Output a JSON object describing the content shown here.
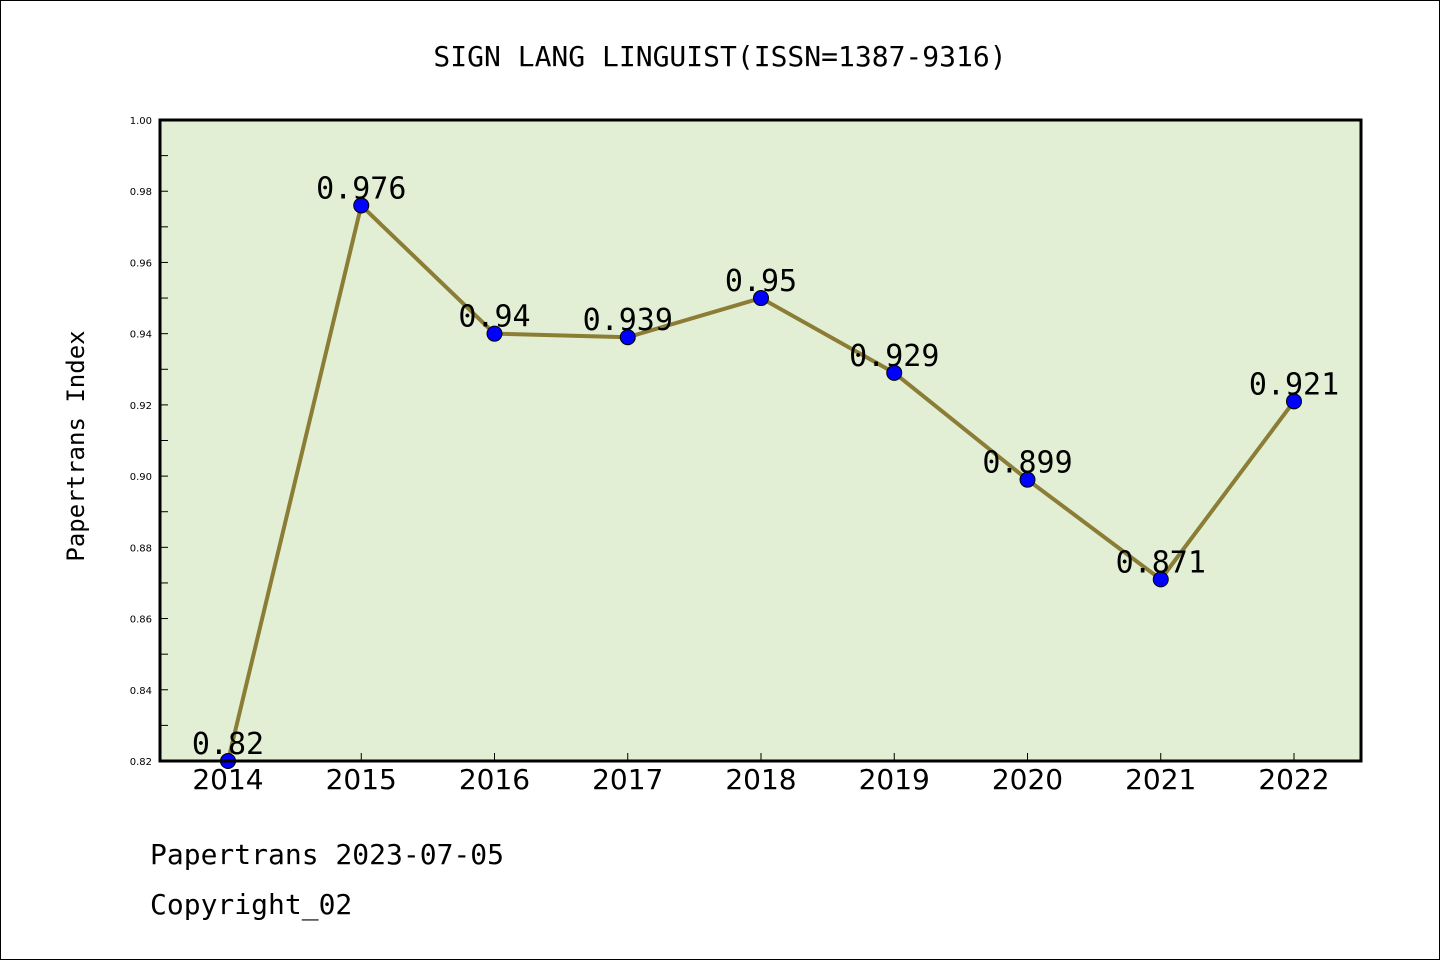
{
  "chart_data": {
    "type": "line",
    "title": "SIGN LANG LINGUIST(ISSN=1387-9316)",
    "ylabel": "Papertrans Index",
    "xlabel": "",
    "categories": [
      "2014",
      "2015",
      "2016",
      "2017",
      "2018",
      "2019",
      "2020",
      "2021",
      "2022"
    ],
    "values": [
      0.82,
      0.976,
      0.94,
      0.939,
      0.95,
      0.929,
      0.899,
      0.871,
      0.921
    ],
    "data_labels": [
      "0.82",
      "0.976",
      "0.94",
      "0.939",
      "0.95",
      "0.929",
      "0.899",
      "0.871",
      "0.921"
    ],
    "ylim": [
      0.82,
      1.0
    ],
    "yticks": [
      "0.82",
      "0.84",
      "0.86",
      "0.88",
      "0.90",
      "0.92",
      "0.94",
      "0.96",
      "0.98",
      "1.00"
    ],
    "grid": false,
    "colors": {
      "plot_background": "#e2efd5",
      "line": "#8b7d35",
      "marker": "#0000ff",
      "axis": "#000000"
    }
  },
  "footer": {
    "line1": "Papertrans 2023-07-05",
    "line2": "Copyright_02"
  }
}
